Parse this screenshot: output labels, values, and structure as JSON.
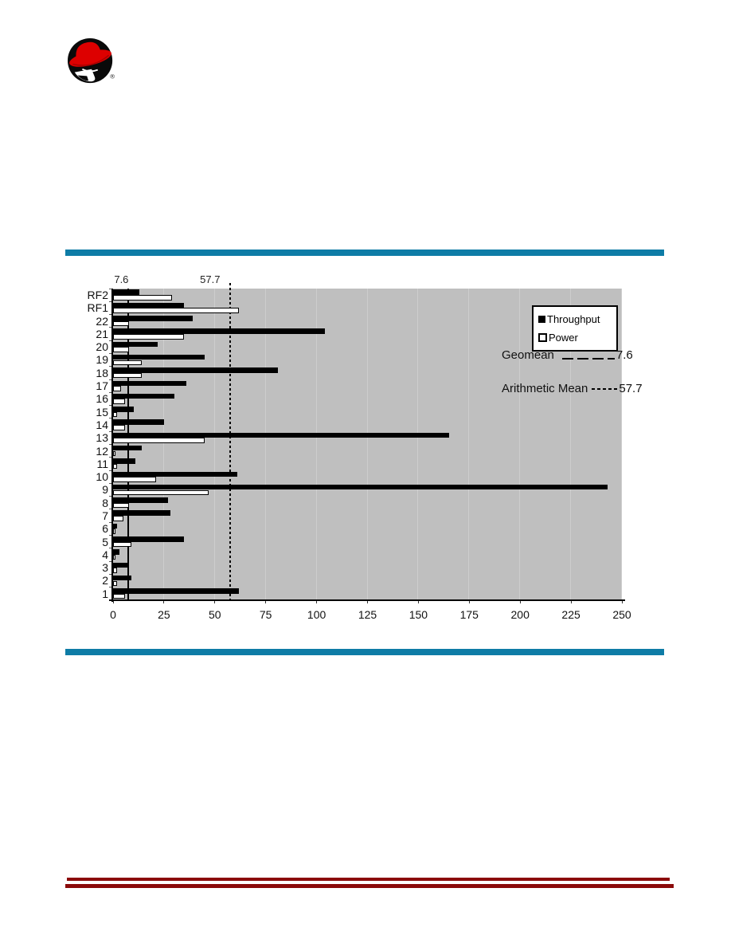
{
  "page": {
    "logo": {
      "label": "Red Hat shadowman logo",
      "registered_mark": "®",
      "hat_color": "#dd0000",
      "shadow_color": "#0a0a0a"
    },
    "rules": {
      "blue_bar_color": "#0e7ca6",
      "red_line_color": "#8b0a0a"
    }
  },
  "chart_data": {
    "type": "bar",
    "orientation": "horizontal",
    "title": "",
    "xlabel": "",
    "ylabel": "",
    "categories": [
      "RF2",
      "RF1",
      "22",
      "21",
      "20",
      "19",
      "18",
      "17",
      "16",
      "15",
      "14",
      "13",
      "12",
      "11",
      "10",
      "9",
      "8",
      "7",
      "6",
      "5",
      "4",
      "3",
      "2",
      "1"
    ],
    "series": [
      {
        "name": "Throughput",
        "color": "#000000",
        "values": [
          13,
          35,
          39,
          104,
          22,
          45,
          81,
          36,
          30,
          10,
          25,
          165,
          14,
          11,
          61,
          243,
          27,
          28,
          2,
          35,
          3,
          7,
          9,
          62
        ]
      },
      {
        "name": "Power",
        "color": "#ffffff",
        "values": [
          29,
          62,
          8,
          35,
          8,
          14,
          14,
          4,
          6,
          2,
          6,
          45,
          1,
          2,
          21,
          47,
          8,
          5,
          1,
          9,
          1,
          2,
          2,
          6
        ]
      }
    ],
    "xlim": [
      0,
      250
    ],
    "x_ticks": [
      0,
      25,
      50,
      75,
      100,
      125,
      150,
      175,
      200,
      225,
      250
    ],
    "grid": true,
    "grid_color": "#cdcdcd",
    "plot_background": "#bfbfbf",
    "legend": {
      "position": "top-right",
      "entries": [
        "Throughput",
        "Power"
      ]
    },
    "reference_lines": [
      {
        "name": "geomean",
        "label": "7.6",
        "value": 7.6,
        "style": "solid"
      },
      {
        "name": "arithmetic-mean",
        "label": "57.7",
        "value": 57.7,
        "style": "dotted"
      }
    ],
    "annotations": [
      {
        "text": "Geomean",
        "value_label": "7.6",
        "line_style": "long-dash"
      },
      {
        "text": "Arithmetic Mean",
        "value_label": "57.7",
        "line_style": "dash"
      }
    ]
  }
}
